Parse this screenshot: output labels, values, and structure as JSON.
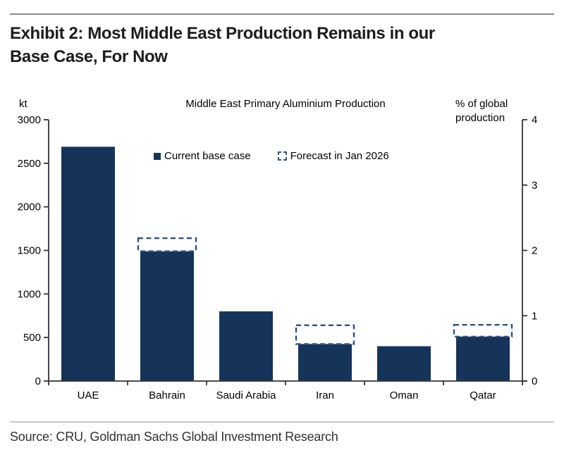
{
  "header": {
    "title": "Exhibit 2: Most Middle East Production Remains in our Base Case, For Now",
    "title_lines": [
      "Exhibit 2: Most Middle East Production Remains in our",
      "Base Case, For Now"
    ]
  },
  "footer": {
    "source": "Source: CRU, Goldman Sachs Global Investment Research"
  },
  "chart_data": {
    "type": "bar",
    "title": "Middle East Primary Aluminium Production",
    "categories": [
      "UAE",
      "Bahrain",
      "Saudi Arabia",
      "Iran",
      "Oman",
      "Qatar"
    ],
    "series": [
      {
        "name": "Current base case",
        "style": "solid",
        "values": [
          2690,
          1490,
          800,
          425,
          400,
          510
        ]
      },
      {
        "name": "Forecast in Jan 2026",
        "style": "dashed-outline",
        "values": [
          null,
          1640,
          null,
          640,
          null,
          645
        ]
      }
    ],
    "left_axis": {
      "label": "kt",
      "min": 0,
      "max": 3000,
      "ticks": [
        3000,
        2500,
        2000,
        1500,
        1000,
        500,
        0
      ]
    },
    "right_axis": {
      "label": "% of global production",
      "min": 0,
      "max": 4,
      "ticks": [
        4,
        3,
        2,
        1,
        0
      ]
    },
    "colors": {
      "bar": "#16345a",
      "forecast_outline": "#2e5184",
      "axis": "#333333",
      "text": "#000000"
    },
    "legend_position": "top-center",
    "grid": false
  }
}
